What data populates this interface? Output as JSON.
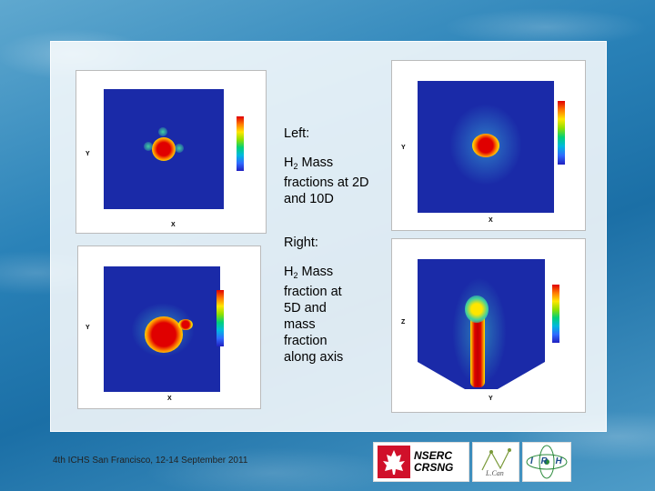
{
  "text": {
    "left_heading": "Left:",
    "left_desc_prefix": "H",
    "left_desc_sub": "2",
    "left_desc_rest": " Mass fractions at 2D and 10D",
    "right_heading": "Right:",
    "right_desc_prefix": "H",
    "right_desc_sub": "2",
    "right_desc_rest": " Mass fraction at 5D and mass fraction along axis"
  },
  "footer": "4th ICHS  San Francisco, 12-14 September 2011",
  "logos": {
    "nserc_line1": "NSERC",
    "nserc_line2": "CRSNG",
    "irh": "I R H"
  },
  "axis_labels": {
    "fig1_x": "X",
    "fig1_y": "Y",
    "fig2_x": "X",
    "fig2_y": "Y",
    "fig3_x": "X",
    "fig3_y": "Y",
    "fig4_x": "Y",
    "fig4_y": "Z"
  }
}
